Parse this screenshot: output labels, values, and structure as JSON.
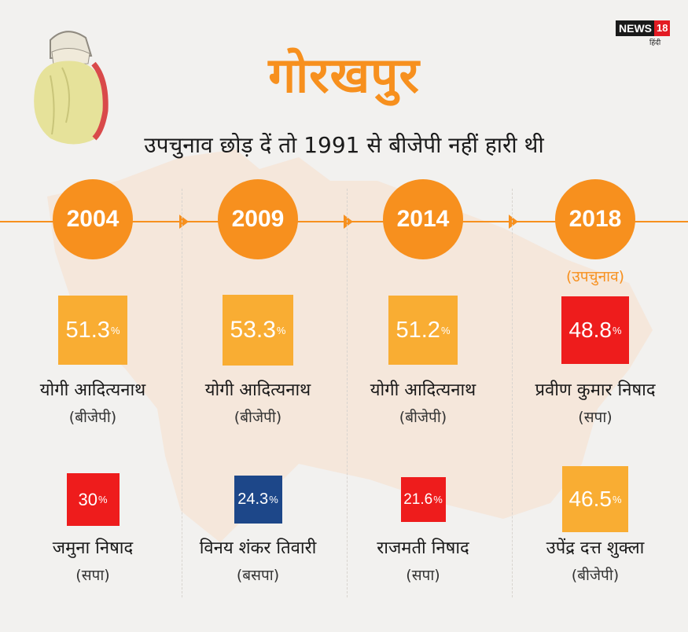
{
  "header": {
    "title": "गोरखपुर",
    "subtitle": "उपचुनाव छोड़ दें तो 1991 से बीजेपी नहीं हारी थी",
    "logo_text": "NEWS",
    "logo_number": "18",
    "logo_sub": "हिंदी"
  },
  "colors": {
    "accent": "#f7901e",
    "bjp": "#f9ad33",
    "sp": "#ee1c1c",
    "bsp": "#1d4789"
  },
  "chart_data": {
    "type": "table",
    "title": "गोरखपुर",
    "subtitle": "उपचुनाव छोड़ दें तो 1991 से बीजेपी नहीं हारी थी",
    "columns": [
      {
        "year": "2004",
        "note": "",
        "winner": {
          "value": 51.3,
          "display": "51.3",
          "unit": "%",
          "name": "योगी आदित्यनाथ",
          "party": "(बीजेपी)",
          "color": "#f9ad33"
        },
        "runner_up": {
          "value": 30,
          "display": "30",
          "unit": "%",
          "name": "जमुना निषाद",
          "party": "(सपा)",
          "color": "#ee1c1c"
        }
      },
      {
        "year": "2009",
        "note": "",
        "winner": {
          "value": 53.3,
          "display": "53.3",
          "unit": "%",
          "name": "योगी आदित्यनाथ",
          "party": "(बीजेपी)",
          "color": "#f9ad33"
        },
        "runner_up": {
          "value": 24.3,
          "display": "24.3",
          "unit": "%",
          "name": "विनय शंकर तिवारी",
          "party": "(बसपा)",
          "color": "#1d4789"
        }
      },
      {
        "year": "2014",
        "note": "",
        "winner": {
          "value": 51.2,
          "display": "51.2",
          "unit": "%",
          "name": "योगी आदित्यनाथ",
          "party": "(बीजेपी)",
          "color": "#f9ad33"
        },
        "runner_up": {
          "value": 21.6,
          "display": "21.6",
          "unit": "%",
          "name": "राजमती निषाद",
          "party": "(सपा)",
          "color": "#ee1c1c"
        }
      },
      {
        "year": "2018",
        "note": "(उपचुनाव)",
        "winner": {
          "value": 48.8,
          "display": "48.8",
          "unit": "%",
          "name": "प्रवीण कुमार निषाद",
          "party": "(सपा)",
          "color": "#ee1c1c"
        },
        "runner_up": {
          "value": 46.5,
          "display": "46.5",
          "unit": "%",
          "name": "उपेंद्र दत्त शुक्ला",
          "party": "(बीजेपी)",
          "color": "#f9ad33"
        }
      }
    ]
  }
}
